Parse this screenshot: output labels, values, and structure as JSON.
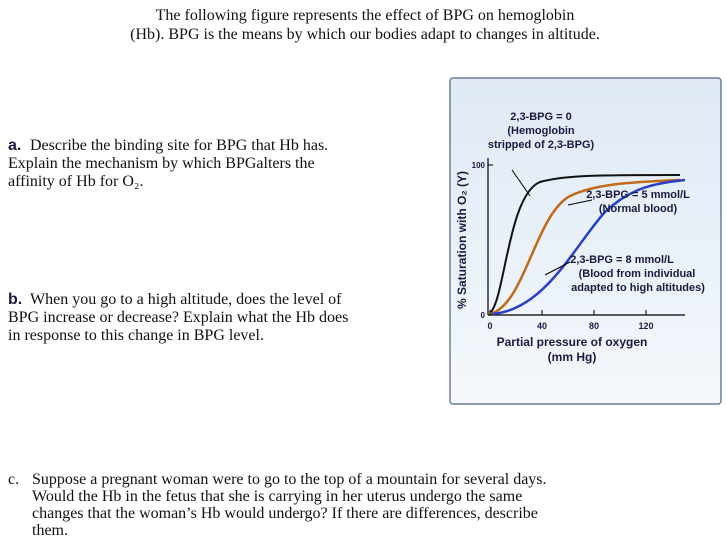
{
  "header": {
    "lines": [
      "The following figure represents the effect of BPG on hemoglobin",
      "(Hb). BPG is the means by which our bodies adapt to changes in altitude."
    ]
  },
  "questions": [
    {
      "label": "a.",
      "lines": [
        "Describe the binding site for BPG that Hb has.",
        "Explain the mechanism by which BPGalters the",
        "affinity of Hb for O₂."
      ]
    },
    {
      "label": "b.",
      "lines": [
        "When you go to a high altitude, does the level of",
        "BPG increase or decrease? Explain what the Hb does",
        "in response to this change in BPG level."
      ]
    },
    {
      "label": "c.",
      "lines": [
        "Suppose a pregnant woman were to go to the top of a mountain for several days.",
        "Would the Hb in the fetus that she is carrying in her uterus undergo the same",
        "changes that the woman’s Hb would undergo? If there are differences, describe",
        "them."
      ]
    }
  ],
  "figure": {
    "y_label": "% Saturation with O₂ (Y)",
    "x_label": [
      "Partial pressure of oxygen",
      "(mm Hg)"
    ],
    "xticks": [
      0,
      40,
      80,
      120
    ],
    "yticks": [
      0,
      100
    ],
    "annotations": [
      [
        "2,3-BPG = 0",
        "(Hemoglobin",
        "stripped of 2,3-BPG)"
      ],
      [
        "2,3-BPG = 5 mmol/L",
        "(Normal blood)"
      ],
      [
        "2,3-BPG = 8 mmol/L",
        "(Blood from individual",
        "adapted to high altitudes)"
      ]
    ]
  }
}
